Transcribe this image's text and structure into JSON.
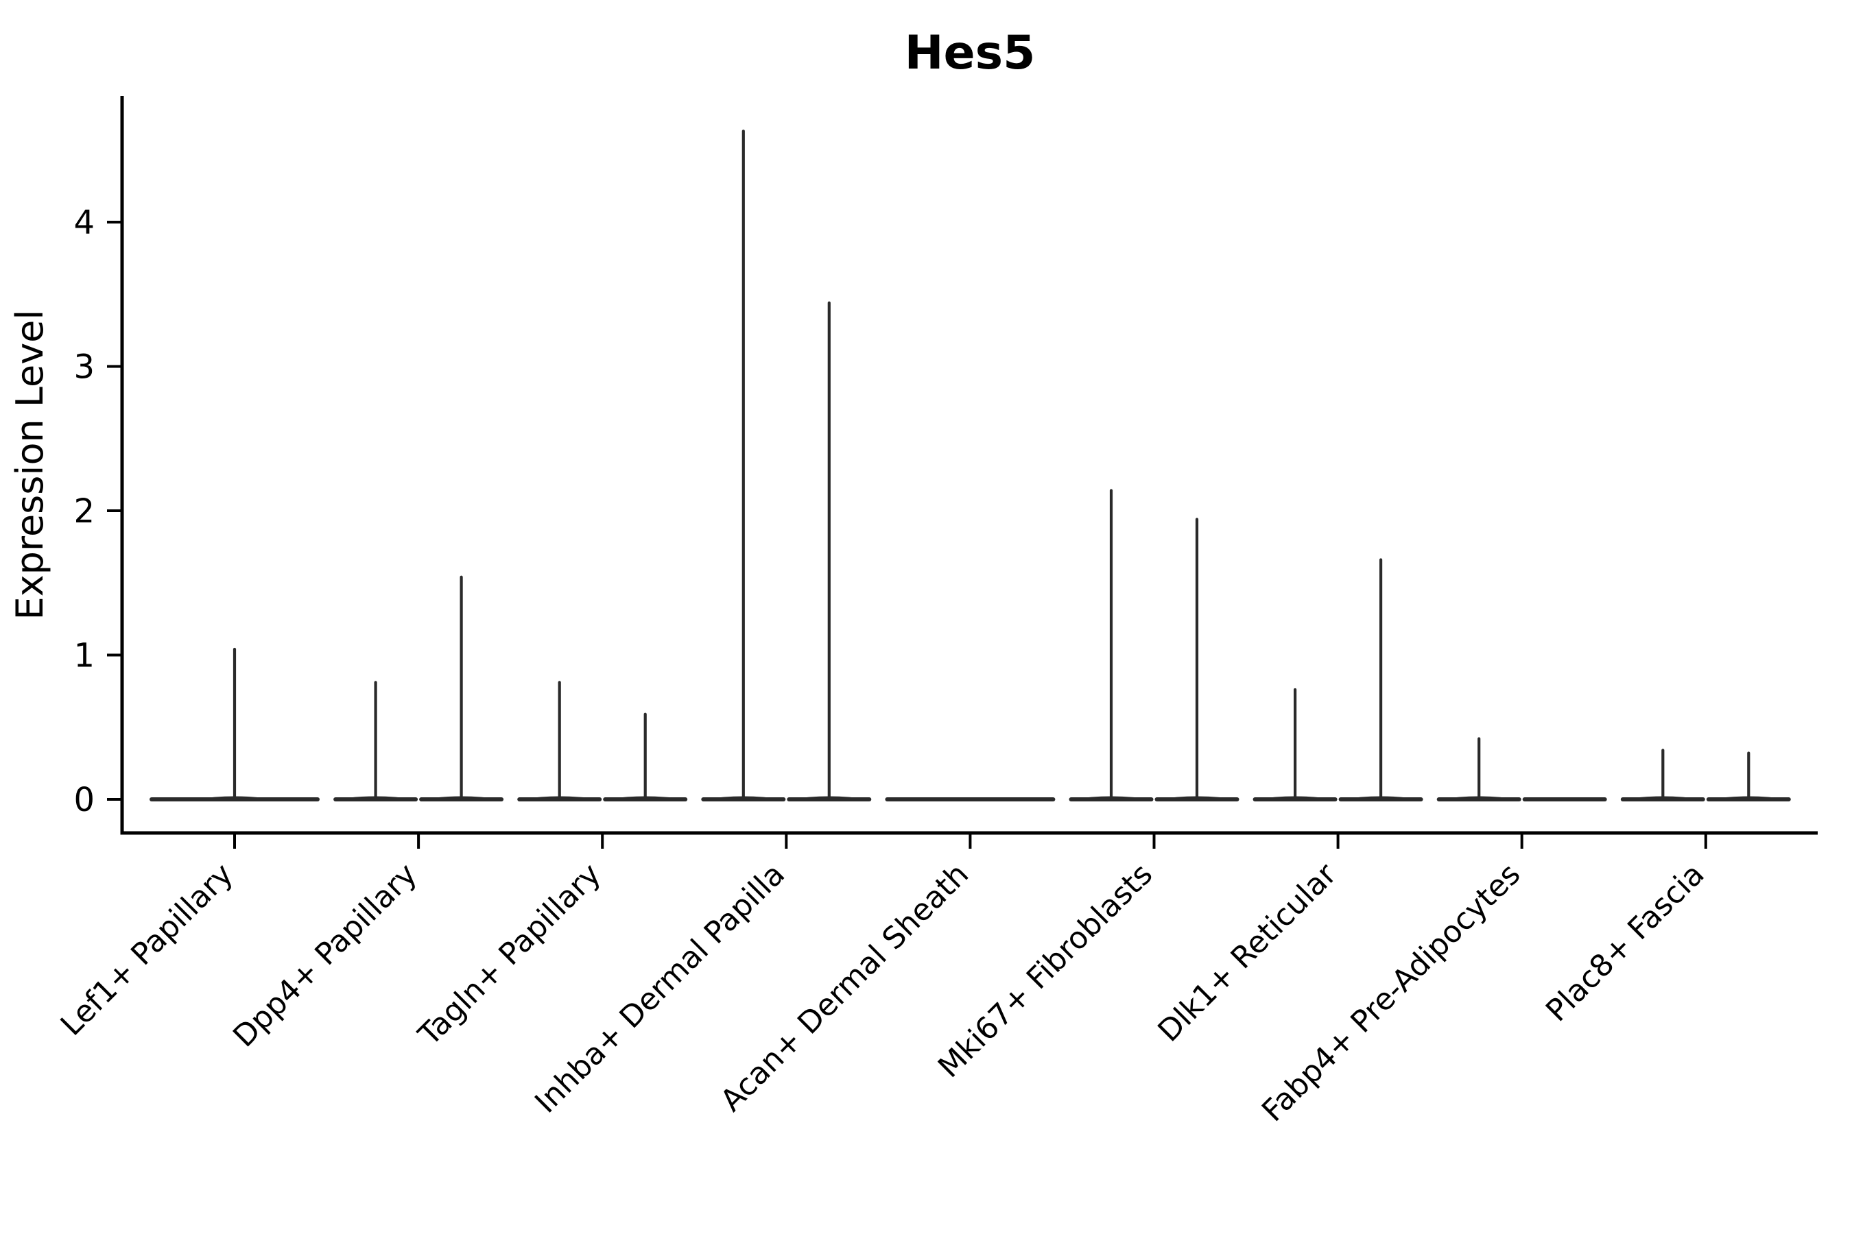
{
  "chart_data": {
    "type": "violin",
    "title": "Hes5",
    "ylabel": "Expression Level",
    "xlabel": "",
    "yticks": [
      0,
      1,
      2,
      3,
      4
    ],
    "ylim": [
      -0.2,
      4.87
    ],
    "grid": false,
    "legend": "none",
    "colors": {
      "violin_stroke": "#2a2a2a",
      "axis": "#000000",
      "background": "#ffffff"
    },
    "description": "Violin plot of Hes5 expression; each category shows a flat density at 0 with thin spikes up to the maximum expression of rare expressing cells.",
    "categories": [
      {
        "label": "Lef1+ Papillary",
        "violins": [
          {
            "max": 1.05
          }
        ]
      },
      {
        "label": "Dpp4+ Papillary",
        "violins": [
          {
            "max": 0.82
          },
          {
            "max": 1.55
          }
        ]
      },
      {
        "label": "Tagln+ Papillary",
        "violins": [
          {
            "max": 0.82
          },
          {
            "max": 0.6
          }
        ]
      },
      {
        "label": "Inhba+ Dermal Papilla",
        "violins": [
          {
            "max": 4.64
          },
          {
            "max": 3.45
          }
        ]
      },
      {
        "label": "Acan+ Dermal Sheath",
        "violins": [
          {
            "max": 0
          }
        ]
      },
      {
        "label": "Mki67+ Fibroblasts",
        "violins": [
          {
            "max": 2.15
          },
          {
            "max": 1.95
          }
        ]
      },
      {
        "label": "Dlk1+ Reticular",
        "violins": [
          {
            "max": 0.77
          },
          {
            "max": 1.67
          }
        ]
      },
      {
        "label": "Fabp4+ Pre-Adipocytes",
        "violins": [
          {
            "max": 0.43
          },
          {
            "max": 0
          }
        ]
      },
      {
        "label": "Plac8+ Fascia",
        "violins": [
          {
            "max": 0.35
          },
          {
            "max": 0.33
          }
        ]
      }
    ]
  }
}
